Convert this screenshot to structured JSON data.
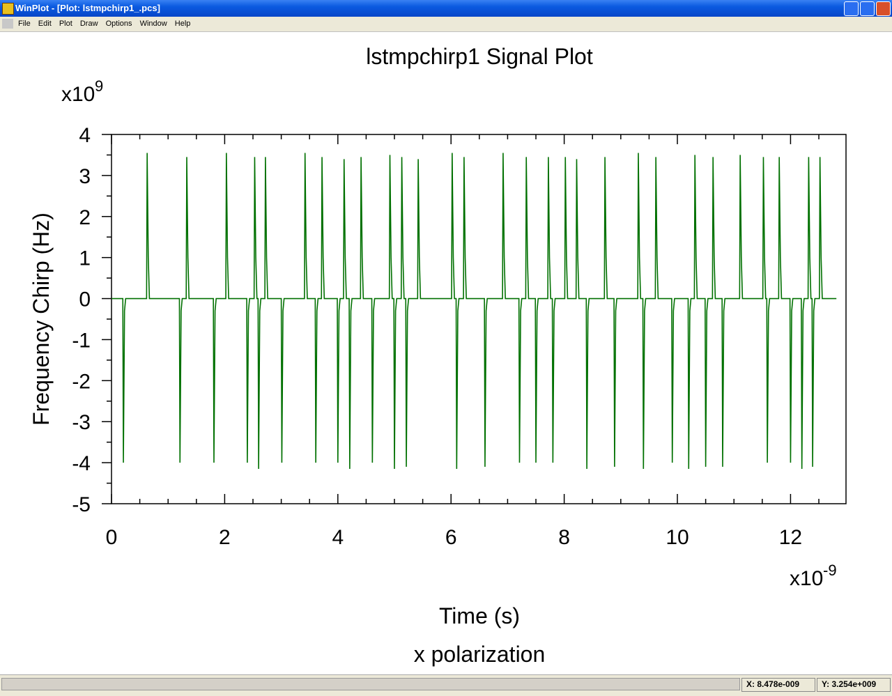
{
  "window": {
    "title": "WinPlot - [Plot: lstmpchirp1_.pcs]"
  },
  "menu": [
    "File",
    "Edit",
    "Plot",
    "Draw",
    "Options",
    "Window",
    "Help"
  ],
  "status": {
    "x": "X: 8.478e-009",
    "y": "Y: 3.254e+009"
  },
  "chart_data": {
    "type": "line",
    "title": "lstmpchirp1  Signal Plot",
    "subtitle": "x polarization",
    "x_label": "Time (s)",
    "y_label": "Frequency Chirp (Hz)",
    "x_multiplier": {
      "base": "x10",
      "exponent": "-9"
    },
    "y_multiplier": {
      "base": "x10",
      "exponent": "9"
    },
    "color": "#007000",
    "xlim": [
      0,
      12.98
    ],
    "ylim": [
      -5,
      4
    ],
    "xticks": [
      0,
      2,
      4,
      6,
      8,
      10,
      12
    ],
    "yticks": [
      -5,
      -4,
      -3,
      -2,
      -1,
      0,
      1,
      2,
      3,
      4
    ],
    "xminorticks": [
      0.5,
      1,
      1.5,
      2.5,
      3,
      3.5,
      4.5,
      5,
      5.5,
      6.5,
      7,
      7.5,
      8.5,
      9,
      9.5,
      10.5,
      11,
      11.5,
      12.5
    ],
    "yminorticks": [
      -4.5,
      -3.5,
      -2.5,
      -1.5,
      -0.5,
      0.5,
      1.5,
      2.5,
      3.5
    ],
    "x": [
      0,
      0.2,
      0.21,
      0.23,
      0.25,
      0.62,
      0.63,
      0.65,
      0.67,
      1.2,
      1.21,
      1.23,
      1.25,
      1.32,
      1.33,
      1.35,
      1.37,
      1.8,
      1.81,
      1.83,
      1.85,
      2.02,
      2.03,
      2.05,
      2.07,
      2.39,
      2.4,
      2.42,
      2.44,
      2.52,
      2.53,
      2.55,
      2.57,
      2.59,
      2.6,
      2.62,
      2.64,
      2.71,
      2.72,
      2.74,
      2.76,
      3.0,
      3.01,
      3.03,
      3.05,
      3.41,
      3.42,
      3.44,
      3.46,
      3.6,
      3.61,
      3.63,
      3.65,
      3.71,
      3.72,
      3.74,
      3.76,
      3.99,
      4.0,
      4.02,
      4.04,
      4.1,
      4.11,
      4.13,
      4.15,
      4.2,
      4.21,
      4.23,
      4.25,
      4.4,
      4.41,
      4.43,
      4.45,
      4.6,
      4.61,
      4.63,
      4.65,
      4.91,
      4.92,
      4.94,
      4.96,
      4.99,
      5.0,
      5.02,
      5.04,
      5.12,
      5.13,
      5.15,
      5.17,
      5.2,
      5.21,
      5.23,
      5.25,
      5.41,
      5.42,
      5.44,
      5.46,
      6.01,
      6.02,
      6.04,
      6.06,
      6.09,
      6.1,
      6.12,
      6.14,
      6.22,
      6.23,
      6.25,
      6.27,
      6.59,
      6.6,
      6.62,
      6.64,
      6.91,
      6.92,
      6.94,
      6.96,
      7.2,
      7.21,
      7.23,
      7.25,
      7.32,
      7.33,
      7.35,
      7.37,
      7.49,
      7.5,
      7.52,
      7.54,
      7.71,
      7.72,
      7.74,
      7.76,
      7.79,
      7.8,
      7.82,
      7.84,
      8.01,
      8.02,
      8.04,
      8.06,
      8.21,
      8.22,
      8.24,
      8.26,
      8.39,
      8.4,
      8.42,
      8.44,
      8.71,
      8.72,
      8.74,
      8.76,
      8.88,
      8.89,
      8.91,
      8.93,
      9.3,
      9.31,
      9.33,
      9.35,
      9.39,
      9.4,
      9.42,
      9.44,
      9.61,
      9.62,
      9.64,
      9.66,
      9.9,
      9.91,
      9.93,
      9.95,
      10.19,
      10.2,
      10.22,
      10.24,
      10.3,
      10.31,
      10.33,
      10.35,
      10.49,
      10.5,
      10.52,
      10.54,
      10.62,
      10.63,
      10.65,
      10.67,
      10.79,
      10.8,
      10.82,
      10.84,
      11.1,
      11.11,
      11.13,
      11.15,
      11.51,
      11.52,
      11.54,
      11.56,
      11.58,
      11.59,
      11.61,
      11.63,
      11.79,
      11.8,
      11.82,
      11.84,
      11.99,
      12.0,
      12.02,
      12.04,
      12.19,
      12.2,
      12.22,
      12.24,
      12.31,
      12.32,
      12.34,
      12.36,
      12.38,
      12.39,
      12.41,
      12.43,
      12.51,
      12.52,
      12.54,
      12.56,
      12.81
    ],
    "values": [
      0,
      0,
      -4,
      -0.3,
      0,
      0,
      3.55,
      1,
      0,
      0,
      -4,
      -0.3,
      0,
      0,
      3.45,
      1,
      0,
      0,
      -4,
      -0.3,
      0,
      0,
      3.55,
      1,
      0,
      0,
      -4,
      -0.3,
      0,
      0,
      3.45,
      1,
      0,
      0,
      -4.15,
      -0.3,
      0,
      0,
      3.45,
      1,
      0,
      0,
      -4,
      -0.3,
      0,
      0,
      3.55,
      1,
      0,
      0,
      -4,
      -0.3,
      0,
      0,
      3.45,
      1,
      0,
      0,
      -4,
      -0.3,
      0,
      0,
      3.4,
      1,
      0,
      0,
      -4.15,
      -0.3,
      0,
      0,
      3.45,
      1,
      0,
      0,
      -4,
      -0.3,
      0,
      0,
      3.5,
      1,
      0,
      0,
      -4.15,
      -0.3,
      0,
      0,
      3.45,
      1,
      0,
      0,
      -4.1,
      -0.3,
      0,
      0,
      3.4,
      1,
      0,
      0,
      3.55,
      1,
      0,
      0,
      -4.15,
      -0.3,
      0,
      0,
      3.45,
      1,
      0,
      0,
      -4.1,
      -0.3,
      0,
      0,
      3.55,
      1,
      0,
      0,
      -4,
      -0.3,
      0,
      0,
      3.45,
      1,
      0,
      0,
      -4,
      -0.3,
      0,
      0,
      3.45,
      1,
      0,
      0,
      -4,
      -0.3,
      0,
      0,
      3.45,
      1,
      0,
      0,
      3.4,
      1,
      0,
      0,
      -4.15,
      -0.3,
      0,
      0,
      3.45,
      1,
      0,
      0,
      -4.1,
      -0.3,
      0,
      0,
      3.55,
      1,
      0,
      0,
      -4.15,
      -0.3,
      0,
      0,
      3.45,
      1,
      0,
      0,
      -4,
      -0.3,
      0,
      0,
      -4.15,
      -0.3,
      0,
      0,
      3.5,
      1,
      0,
      0,
      -4.1,
      -0.3,
      0,
      0,
      3.45,
      1,
      0,
      0,
      -4.1,
      -0.3,
      0,
      0,
      3.5,
      1,
      0,
      0,
      3.45,
      1,
      0,
      0,
      -4,
      -0.3,
      0,
      0,
      3.45,
      1,
      0,
      0,
      -4,
      -0.3,
      0,
      0,
      -4.15,
      -0.3,
      0,
      0,
      3.45,
      1,
      0,
      0,
      -4.1,
      -0.3,
      0,
      0,
      3.45,
      1,
      0,
      0
    ]
  }
}
